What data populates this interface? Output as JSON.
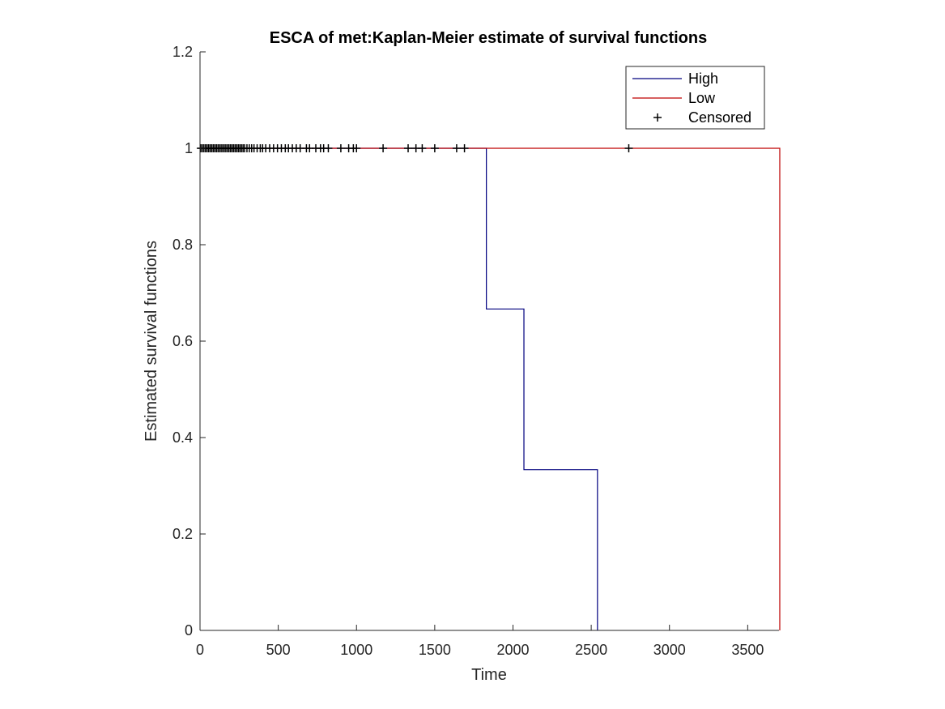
{
  "chart_data": {
    "type": "line",
    "title": "ESCA of met:Kaplan-Meier estimate of survival functions",
    "xlabel": "Time",
    "ylabel": "Estimated survival functions",
    "xlim": [
      0,
      3700
    ],
    "ylim": [
      0,
      1.2
    ],
    "xticks": [
      0,
      500,
      1000,
      1500,
      2000,
      2500,
      3000,
      3500
    ],
    "yticks": [
      0,
      0.2,
      0.4,
      0.6,
      0.8,
      1,
      1.2
    ],
    "xtick_labels": [
      "0",
      "500",
      "1000",
      "1500",
      "2000",
      "2500",
      "3000",
      "3500"
    ],
    "ytick_labels": [
      "0",
      "0.2",
      "0.4",
      "0.6",
      "0.8",
      "1",
      "1.2"
    ],
    "grid": false,
    "legend_position": "top-right",
    "series": [
      {
        "name": "High",
        "color": "#00007f",
        "step_points": [
          [
            0,
            1
          ],
          [
            1830,
            1
          ],
          [
            1830,
            0.6667
          ],
          [
            2070,
            0.6667
          ],
          [
            2070,
            0.3333
          ],
          [
            2540,
            0.3333
          ],
          [
            2540,
            0
          ]
        ]
      },
      {
        "name": "Low",
        "color": "#bf0000",
        "step_points": [
          [
            0,
            1
          ],
          [
            3705,
            1
          ],
          [
            3705,
            0
          ]
        ]
      }
    ],
    "censored": {
      "name": "Censored",
      "color": "#000000",
      "y": 1,
      "x": [
        5,
        15,
        25,
        35,
        45,
        55,
        65,
        75,
        85,
        95,
        105,
        115,
        125,
        135,
        145,
        155,
        165,
        175,
        185,
        195,
        205,
        215,
        225,
        235,
        245,
        255,
        265,
        275,
        285,
        300,
        315,
        330,
        345,
        365,
        385,
        400,
        420,
        445,
        470,
        495,
        520,
        545,
        565,
        590,
        615,
        640,
        680,
        700,
        740,
        770,
        790,
        820,
        900,
        950,
        980,
        1000,
        1170,
        1330,
        1380,
        1420,
        1500,
        1640,
        1690,
        2740
      ]
    },
    "legend": [
      {
        "label": "High",
        "color": "#00007f",
        "marker": "line"
      },
      {
        "label": "Low",
        "color": "#bf0000",
        "marker": "line"
      },
      {
        "label": "Censored",
        "color": "#000000",
        "marker": "+"
      }
    ]
  }
}
